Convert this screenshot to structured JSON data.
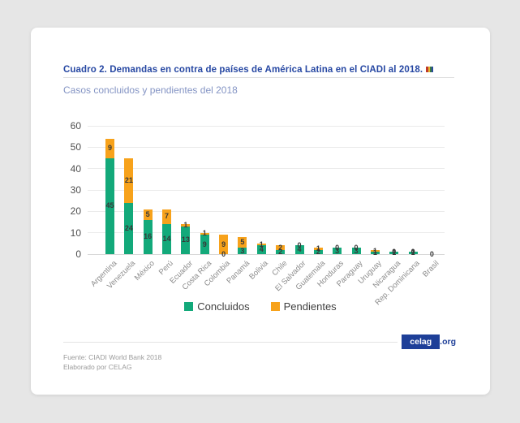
{
  "header": {
    "title": "Cuadro 2. Demandas en contra de países de América Latina en el CIADI al 2018.",
    "subtitle": "Casos concluidos y pendientes del 2018",
    "title_color": "#2748a3"
  },
  "chart_data": {
    "type": "bar",
    "stacked": true,
    "categories": [
      "Argentina",
      "Venezuela",
      "México",
      "Perú",
      "Ecuador",
      "Costa Rica",
      "Colombia",
      "Panamá",
      "Bolivia",
      "Chile",
      "El Salvador",
      "Guatemala",
      "Honduras",
      "Paraguay",
      "Uruguay",
      "Nicaragua",
      "Rep. Dominicana",
      "Brasil"
    ],
    "series": [
      {
        "name": "Concluidos",
        "color": "#13a97a",
        "values": [
          45,
          24,
          16,
          14,
          13,
          9,
          0,
          3,
          4,
          2,
          4,
          2,
          3,
          3,
          1,
          1,
          1,
          0
        ]
      },
      {
        "name": "Pendientes",
        "color": "#f7a21b",
        "values": [
          9,
          21,
          5,
          7,
          1,
          1,
          9,
          5,
          1,
          2,
          0,
          1,
          0,
          0,
          1,
          0,
          0,
          0
        ]
      }
    ],
    "ylabel": "",
    "xlabel": "",
    "ylim": [
      0,
      60
    ],
    "yticks": [
      0,
      10,
      20,
      30,
      40,
      50,
      60
    ],
    "grid": true,
    "legend_position": "bottom",
    "data_labels": true
  },
  "footer": {
    "source_line1": "Fuente: CIADI World Bank 2018",
    "source_line2": "Elaborado por CELAG",
    "brand": "celag",
    "brand_suffix": ".org"
  }
}
